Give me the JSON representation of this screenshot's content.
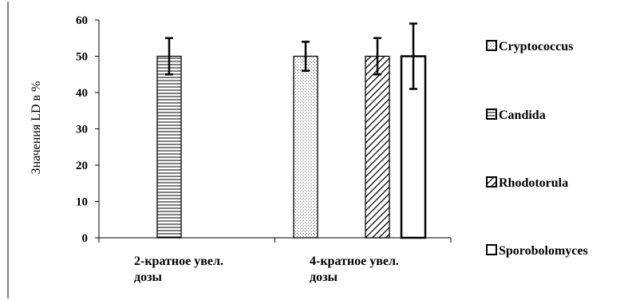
{
  "chart_data": {
    "type": "bar",
    "ylabel": "Значения LD в %",
    "ylim": [
      0,
      60
    ],
    "yticks": [
      0,
      10,
      20,
      30,
      40,
      50,
      60
    ],
    "grid": false,
    "legend_position": "right",
    "category_lines": [
      [
        "2-кратное увел.",
        "дозы"
      ],
      [
        "4-кратное увел.",
        "дозы"
      ]
    ],
    "series": [
      {
        "name": "Cryptococcus",
        "pattern": "dots",
        "values": [
          null,
          50
        ],
        "errors": [
          null,
          4
        ]
      },
      {
        "name": "Candida",
        "pattern": "hlines",
        "values": [
          50,
          null
        ],
        "errors": [
          5,
          null
        ]
      },
      {
        "name": "Rhodotorula",
        "pattern": "diagonal",
        "values": [
          null,
          50
        ],
        "errors": [
          null,
          5
        ]
      },
      {
        "name": "Sporobolomyces",
        "pattern": "empty",
        "values": [
          null,
          50
        ],
        "errors": [
          null,
          9
        ]
      }
    ]
  }
}
